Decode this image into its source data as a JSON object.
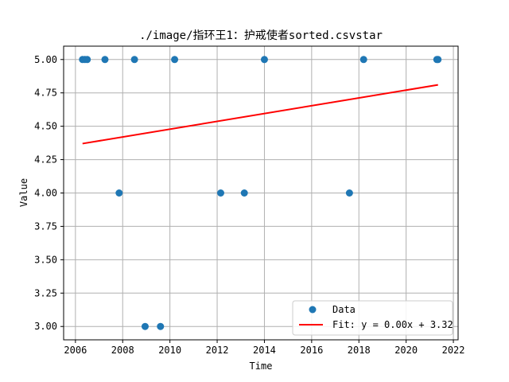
{
  "chart_data": {
    "type": "scatter",
    "title": "./image/指环王1：护戒使者sorted.csvstar",
    "xlabel": "Time",
    "ylabel": "Value",
    "xlim": [
      2005.5,
      2022.2
    ],
    "ylim": [
      2.9,
      5.1
    ],
    "x_ticks": [
      2006,
      2008,
      2010,
      2012,
      2014,
      2016,
      2018,
      2020,
      2022
    ],
    "y_ticks": [
      3.0,
      3.25,
      3.5,
      3.75,
      4.0,
      4.25,
      4.5,
      4.75,
      5.0
    ],
    "x_tick_labels": [
      "2006",
      "2008",
      "2010",
      "2012",
      "2014",
      "2016",
      "2018",
      "2020",
      "2022"
    ],
    "y_tick_labels": [
      "3.00",
      "3.25",
      "3.50",
      "3.75",
      "4.00",
      "4.25",
      "4.50",
      "4.75",
      "5.00"
    ],
    "grid": true,
    "legend_position": "lower-right",
    "series": [
      {
        "name": "Data",
        "kind": "scatter",
        "color": "#1f77b4",
        "points": [
          {
            "x": 2006.3,
            "y": 5.0
          },
          {
            "x": 2006.4,
            "y": 5.0
          },
          {
            "x": 2006.5,
            "y": 5.0
          },
          {
            "x": 2007.25,
            "y": 5.0
          },
          {
            "x": 2007.85,
            "y": 4.0
          },
          {
            "x": 2008.5,
            "y": 5.0
          },
          {
            "x": 2008.95,
            "y": 3.0
          },
          {
            "x": 2009.6,
            "y": 3.0
          },
          {
            "x": 2010.2,
            "y": 5.0
          },
          {
            "x": 2012.15,
            "y": 4.0
          },
          {
            "x": 2013.15,
            "y": 4.0
          },
          {
            "x": 2014.0,
            "y": 5.0
          },
          {
            "x": 2017.6,
            "y": 4.0
          },
          {
            "x": 2018.2,
            "y": 5.0
          },
          {
            "x": 2021.3,
            "y": 5.0
          },
          {
            "x": 2021.35,
            "y": 5.0
          }
        ]
      },
      {
        "name": "Fit: y = 0.00x + 3.32",
        "kind": "line",
        "color": "#ff0000",
        "points": [
          {
            "x": 2006.3,
            "y": 4.37
          },
          {
            "x": 2021.35,
            "y": 4.81
          }
        ]
      }
    ]
  }
}
